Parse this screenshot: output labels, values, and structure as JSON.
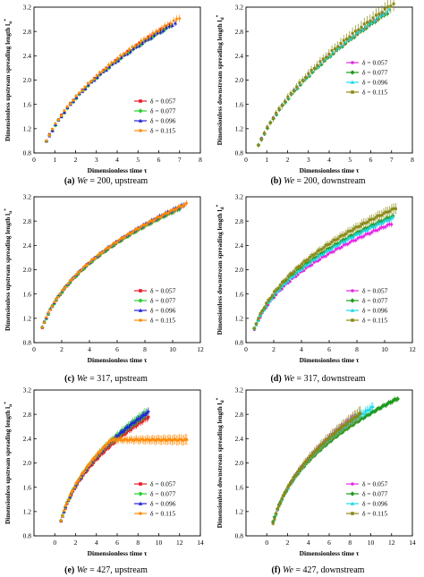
{
  "colors": {
    "s1": "#e8192c",
    "s2": "#26d02a",
    "s3": "#2323d9",
    "s4": "#ff8c0a",
    "d1": "#e628e6",
    "d2": "#1e9a1e",
    "d3": "#22d8e8",
    "d4": "#8a8a18"
  },
  "chart_data": [
    {
      "id": "a",
      "type": "scatter",
      "caption_tag": "(a)",
      "caption_var": "We",
      "caption_rest": " = 200, upstream",
      "xlabel": "Dimensionless time τ",
      "ylabel": "Dimensionless upstream spreading length l",
      "xlim": [
        0,
        8
      ],
      "ylim": [
        0.8,
        3.2
      ],
      "xticks": [
        0,
        1,
        2,
        3,
        4,
        5,
        6,
        7,
        8
      ],
      "yticks": [
        0.8,
        1.2,
        1.6,
        2.0,
        2.4,
        2.8,
        3.2
      ],
      "legend_pos": "lower-right",
      "series": [
        {
          "name": "δ = 0.057",
          "color": "#e8192c",
          "marker": "square",
          "x_start": 0.6,
          "x_end": 6.5,
          "y_at_1": 1.25,
          "exponent": 0.45,
          "err": 0.03
        },
        {
          "name": "δ = 0.077",
          "color": "#26d02a",
          "marker": "diamond",
          "x_start": 0.6,
          "x_end": 6.6,
          "y_at_1": 1.24,
          "exponent": 0.45,
          "err": 0.03
        },
        {
          "name": "δ = 0.096",
          "color": "#2323d9",
          "marker": "triangle",
          "x_start": 0.6,
          "x_end": 6.8,
          "y_at_1": 1.24,
          "exponent": 0.45,
          "err": 0.03
        },
        {
          "name": "δ = 0.115",
          "color": "#ff8c0a",
          "marker": "circle",
          "x_start": 0.6,
          "x_end": 7.0,
          "y_at_1": 1.26,
          "exponent": 0.45,
          "err": 0.04
        }
      ]
    },
    {
      "id": "b",
      "type": "scatter",
      "caption_tag": "(b)",
      "caption_var": "We",
      "caption_rest": " = 200, downstream",
      "xlabel": "Dimensionless time τ",
      "ylabel": "Dimensionless downstream spreading length l",
      "xlim": [
        0,
        8
      ],
      "ylim": [
        0.8,
        3.2
      ],
      "xticks": [
        0,
        1,
        2,
        3,
        4,
        5,
        6,
        7,
        8
      ],
      "yticks": [
        0.8,
        1.2,
        1.6,
        2.0,
        2.4,
        2.8,
        3.2
      ],
      "legend_pos": "right",
      "series": [
        {
          "name": "δ = 0.057",
          "color": "#e628e6",
          "marker": "circle",
          "x_start": 0.6,
          "x_end": 6.6,
          "y_at_1": 1.2,
          "exponent": 0.5,
          "err": 0.03
        },
        {
          "name": "δ = 0.077",
          "color": "#1e9a1e",
          "marker": "diamond",
          "x_start": 0.6,
          "x_end": 6.8,
          "y_at_1": 1.19,
          "exponent": 0.5,
          "err": 0.03
        },
        {
          "name": "δ = 0.096",
          "color": "#22d8e8",
          "marker": "triangle",
          "x_start": 0.6,
          "x_end": 6.9,
          "y_at_1": 1.2,
          "exponent": 0.5,
          "err": 0.03
        },
        {
          "name": "δ = 0.115",
          "color": "#8a8a18",
          "marker": "square",
          "x_start": 0.6,
          "x_end": 7.1,
          "y_at_1": 1.2,
          "exponent": 0.51,
          "err": 0.08
        }
      ]
    },
    {
      "id": "c",
      "type": "scatter",
      "caption_tag": "(c)",
      "caption_var": "We",
      "caption_rest": " = 317, upstream",
      "xlabel": "Dimensionless time τ",
      "ylabel": "Dimensionless upstream spreading length l",
      "xlim": [
        0,
        12
      ],
      "ylim": [
        0.8,
        3.2
      ],
      "xticks": [
        0,
        2,
        4,
        6,
        8,
        10,
        12
      ],
      "yticks": [
        0.8,
        1.2,
        1.6,
        2.0,
        2.4,
        2.8,
        3.2
      ],
      "legend_pos": "lower-right",
      "series": [
        {
          "name": "δ = 0.057",
          "color": "#e8192c",
          "marker": "square",
          "x_start": 0.6,
          "x_end": 10.5,
          "y_at_1": 1.26,
          "exponent": 0.37,
          "err": 0.03
        },
        {
          "name": "δ = 0.077",
          "color": "#26d02a",
          "marker": "diamond",
          "x_start": 0.6,
          "x_end": 10.5,
          "y_at_1": 1.26,
          "exponent": 0.37,
          "err": 0.03
        },
        {
          "name": "δ = 0.096",
          "color": "#2323d9",
          "marker": "triangle",
          "x_start": 0.6,
          "x_end": 10.8,
          "y_at_1": 1.27,
          "exponent": 0.37,
          "err": 0.03
        },
        {
          "name": "δ = 0.115",
          "color": "#ff8c0a",
          "marker": "circle",
          "x_start": 0.6,
          "x_end": 11.0,
          "y_at_1": 1.27,
          "exponent": 0.37,
          "err": 0.03
        }
      ]
    },
    {
      "id": "d",
      "type": "scatter",
      "caption_tag": "(d)",
      "caption_var": "We",
      "caption_rest": " = 317, downstream",
      "xlabel": "Dimensionless time τ",
      "ylabel": "Dimensionless downstream spreading length l",
      "xlim": [
        0,
        12
      ],
      "ylim": [
        0.8,
        3.2
      ],
      "xticks": [
        0,
        2,
        4,
        6,
        8,
        10,
        12
      ],
      "yticks": [
        0.8,
        1.2,
        1.6,
        2.0,
        2.4,
        2.8,
        3.2
      ],
      "legend_pos": "lower-right",
      "series": [
        {
          "name": "δ = 0.057",
          "color": "#e628e6",
          "marker": "circle",
          "x_start": 0.6,
          "x_end": 10.5,
          "y_at_1": 1.21,
          "exponent": 0.35,
          "err": 0.03
        },
        {
          "name": "δ = 0.077",
          "color": "#1e9a1e",
          "marker": "diamond",
          "x_start": 0.6,
          "x_end": 10.6,
          "y_at_1": 1.23,
          "exponent": 0.36,
          "err": 0.03
        },
        {
          "name": "δ = 0.096",
          "color": "#22d8e8",
          "marker": "triangle",
          "x_start": 0.6,
          "x_end": 10.6,
          "y_at_1": 1.22,
          "exponent": 0.36,
          "err": 0.03
        },
        {
          "name": "δ = 0.115",
          "color": "#8a8a18",
          "marker": "square",
          "x_start": 0.6,
          "x_end": 10.8,
          "y_at_1": 1.25,
          "exponent": 0.37,
          "err": 0.06
        }
      ]
    },
    {
      "id": "e",
      "type": "scatter",
      "caption_tag": "(e)",
      "caption_var": "We",
      "caption_rest": " = 427, upstream",
      "xlabel": "Dimensionless time τ",
      "ylabel": "Dimensionless upstream spreading length l",
      "xlim": [
        -2,
        14
      ],
      "ylim": [
        0.8,
        3.2
      ],
      "xticks": [
        0,
        2,
        4,
        6,
        8,
        10,
        12,
        14
      ],
      "yticks": [
        0.8,
        1.2,
        1.6,
        2.0,
        2.4,
        2.8,
        3.2
      ],
      "legend_pos": "lower-right",
      "series": [
        {
          "name": "δ = 0.057",
          "color": "#e8192c",
          "marker": "square",
          "x_start": 0.6,
          "x_end": 9.0,
          "y_at_1": 1.25,
          "exponent": 0.36,
          "err": 0.04
        },
        {
          "name": "δ = 0.077",
          "color": "#26d02a",
          "marker": "diamond",
          "x_start": 0.6,
          "x_end": 8.8,
          "y_at_1": 1.26,
          "exponent": 0.37,
          "err": 0.06
        },
        {
          "name": "δ = 0.096",
          "color": "#2323d9",
          "marker": "triangle",
          "x_start": 0.6,
          "x_end": 9.0,
          "y_at_1": 1.26,
          "exponent": 0.37,
          "err": 0.04
        },
        {
          "name": "δ = 0.115",
          "color": "#ff8c0a",
          "marker": "circle",
          "x_start": 0.6,
          "x_end": 12.7,
          "y_at_1": 1.27,
          "exponent": 0.37,
          "err": 0.06,
          "cap": 2.38
        }
      ]
    },
    {
      "id": "f",
      "type": "scatter",
      "caption_tag": "(f)",
      "caption_var": "We",
      "caption_rest": " = 427, downstream",
      "xlabel": "Dimensionless time τ",
      "ylabel": "Dimensionless downstream spreading length l",
      "xlim": [
        -2,
        14
      ],
      "ylim": [
        0.8,
        3.2
      ],
      "xticks": [
        0,
        2,
        4,
        6,
        8,
        10,
        12,
        14
      ],
      "yticks": [
        0.8,
        1.2,
        1.6,
        2.0,
        2.4,
        2.8,
        3.2
      ],
      "legend_pos": "lower-right",
      "series": [
        {
          "name": "δ = 0.057",
          "color": "#e628e6",
          "marker": "circle",
          "x_start": 0.6,
          "x_end": 8.5,
          "y_at_1": 1.22,
          "exponent": 0.38,
          "err": 0.05
        },
        {
          "name": "δ = 0.077",
          "color": "#1e9a1e",
          "marker": "diamond",
          "x_start": 0.6,
          "x_end": 12.6,
          "y_at_1": 1.23,
          "exponent": 0.36,
          "err": 0.03
        },
        {
          "name": "δ = 0.096",
          "color": "#22d8e8",
          "marker": "triangle",
          "x_start": 0.6,
          "x_end": 10.2,
          "y_at_1": 1.21,
          "exponent": 0.38,
          "err": 0.05
        },
        {
          "name": "δ = 0.115",
          "color": "#8a8a18",
          "marker": "square",
          "x_start": 0.6,
          "x_end": 9.0,
          "y_at_1": 1.22,
          "exponent": 0.38,
          "err": 0.08
        }
      ]
    }
  ]
}
